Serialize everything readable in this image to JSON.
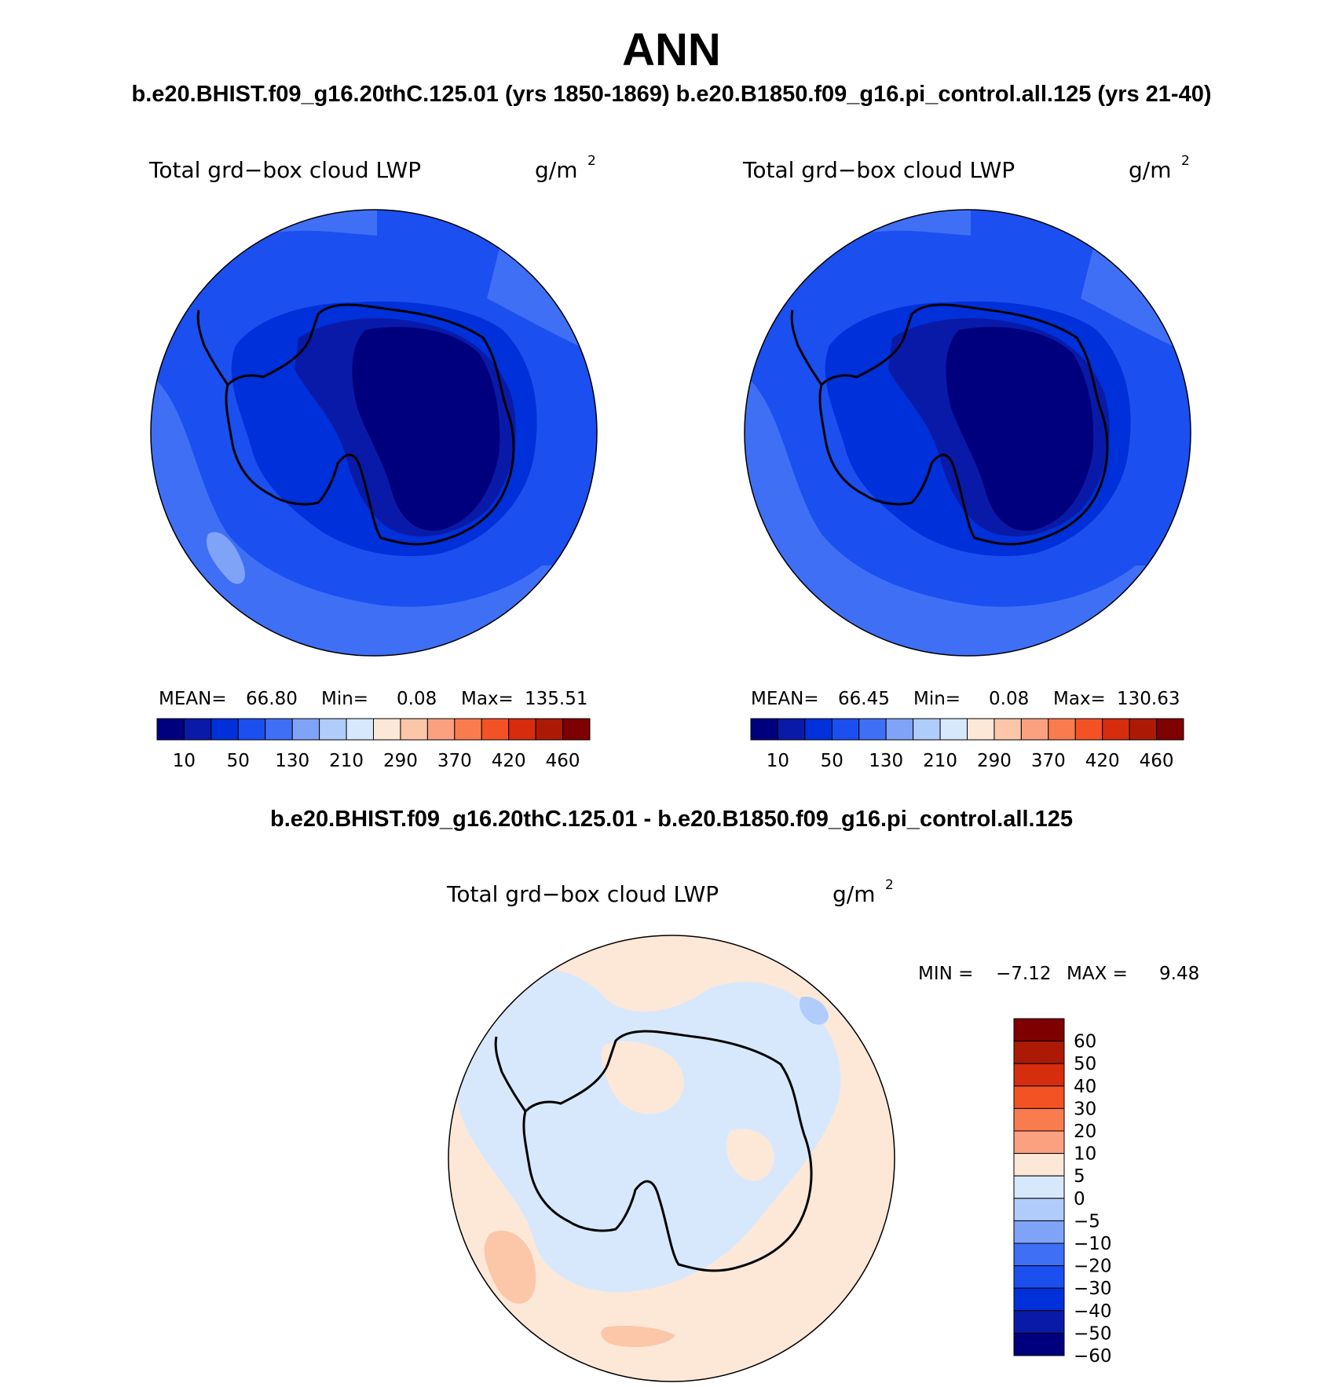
{
  "figure": {
    "title": "ANN",
    "case_title": "b.e20.BHIST.f09_g16.20thC.125.01 (yrs 1850-1869)  b.e20.B1850.f09_g16.pi_control.all.125 (yrs 21-40)",
    "diff_title": "b.e20.BHIST.f09_g16.20thC.125.01 - b.e20.B1850.f09_g16.pi_control.all.125"
  },
  "panels": [
    {
      "variable": "Total grd−box cloud LWP",
      "units": "g/m",
      "units_exp": "2",
      "stats": {
        "mean_label": "MEAN=",
        "mean": "66.80",
        "min_label": "Min=",
        "min": "0.08",
        "max_label": "Max=",
        "max": "135.51"
      }
    },
    {
      "variable": "Total grd−box cloud LWP",
      "units": "g/m",
      "units_exp": "2",
      "stats": {
        "mean_label": "MEAN=",
        "mean": "66.45",
        "min_label": "Min=",
        "min": "0.08",
        "max_label": "Max=",
        "max": "130.63"
      }
    },
    {
      "variable": "Total grd−box cloud LWP",
      "units": "g/m",
      "units_exp": "2",
      "stats": {
        "min_label": "MIN =",
        "min": "−7.12",
        "max_label": "MAX =",
        "max": "9.48"
      }
    }
  ],
  "colorbars": {
    "main": {
      "colors": [
        "#00007f",
        "#0a1aa8",
        "#0030d9",
        "#1c4ff0",
        "#3f6ff5",
        "#7fa3f7",
        "#b0ccfa",
        "#d8e8fc",
        "#fde8d8",
        "#fcc6a9",
        "#fba180",
        "#f97c4e",
        "#f35324",
        "#d52d0e",
        "#ac1a06",
        "#7f0000"
      ],
      "labels": [
        "10",
        "50",
        "130",
        "210",
        "290",
        "370",
        "420",
        "460"
      ]
    },
    "diff": {
      "colors": [
        "#7f0000",
        "#ac1a06",
        "#d52d0e",
        "#f35324",
        "#f97c4e",
        "#fba180",
        "#fde8d8",
        "#d8e8fc",
        "#b0ccfa",
        "#7fa3f7",
        "#3f6ff5",
        "#1c4ff0",
        "#0030d9",
        "#0a1aa8",
        "#00007f"
      ],
      "labels": [
        "60",
        "50",
        "40",
        "30",
        "20",
        "10",
        "5",
        "0",
        "−5",
        "−10",
        "−20",
        "−30",
        "−40",
        "−50",
        "−60"
      ]
    }
  },
  "map_colors": {
    "ocean_mid": "#3f6ff5",
    "ocean_inner": "#1c4ff0",
    "coast": "#0030d9",
    "land_edge": "#0a1aa8",
    "interior": "#00007f",
    "light_patch": "#7fa3f7",
    "diff_pos": "#fde8d8",
    "diff_neg": "#d8e8fc",
    "diff_pos2": "#fcc6a9",
    "diff_neg2": "#b0ccfa"
  }
}
